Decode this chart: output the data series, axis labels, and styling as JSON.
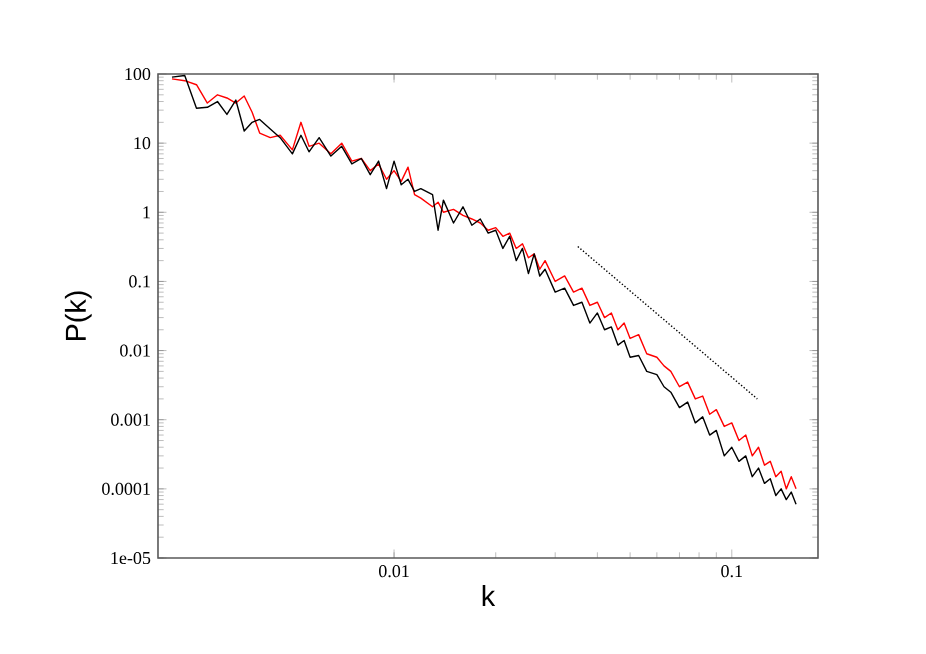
{
  "chart_data": {
    "type": "line",
    "xlabel": "k",
    "ylabel": "P(k)",
    "log": "xy",
    "xlim": [
      0.002,
      0.18
    ],
    "ylim": [
      1e-05,
      100
    ],
    "xticks": [
      0.01,
      0.1
    ],
    "yticks": [
      {
        "value": 1e-05,
        "label": "1e-05"
      },
      0.0001,
      0.001,
      0.01,
      0.1,
      1,
      10,
      100
    ],
    "x": [
      0.0022,
      0.0024,
      0.0026,
      0.0028,
      0.003,
      0.0032,
      0.0034,
      0.0036,
      0.0038,
      0.004,
      0.0043,
      0.0046,
      0.005,
      0.0053,
      0.0056,
      0.006,
      0.0065,
      0.007,
      0.0075,
      0.008,
      0.0085,
      0.009,
      0.0095,
      0.01,
      0.0105,
      0.011,
      0.0115,
      0.012,
      0.013,
      0.0135,
      0.014,
      0.015,
      0.016,
      0.017,
      0.018,
      0.019,
      0.02,
      0.021,
      0.022,
      0.023,
      0.024,
      0.025,
      0.026,
      0.027,
      0.028,
      0.03,
      0.032,
      0.034,
      0.036,
      0.038,
      0.04,
      0.042,
      0.044,
      0.046,
      0.048,
      0.05,
      0.053,
      0.056,
      0.06,
      0.063,
      0.066,
      0.07,
      0.074,
      0.078,
      0.082,
      0.086,
      0.09,
      0.095,
      0.1,
      0.105,
      0.11,
      0.115,
      0.12,
      0.125,
      0.13,
      0.135,
      0.14,
      0.145,
      0.15,
      0.155
    ],
    "series": [
      {
        "color": "#ff0000",
        "values": [
          85,
          80,
          70,
          38,
          50,
          45,
          38,
          48,
          28,
          14,
          12,
          13,
          8,
          20,
          9,
          10,
          7,
          10,
          5.5,
          6,
          4,
          5,
          3,
          4,
          2.8,
          4.5,
          1.8,
          1.6,
          1.2,
          1.4,
          1,
          1.1,
          0.9,
          0.8,
          0.7,
          0.55,
          0.6,
          0.45,
          0.5,
          0.3,
          0.35,
          0.22,
          0.25,
          0.15,
          0.2,
          0.1,
          0.12,
          0.07,
          0.08,
          0.045,
          0.05,
          0.03,
          0.035,
          0.02,
          0.025,
          0.015,
          0.017,
          0.009,
          0.008,
          0.006,
          0.005,
          0.003,
          0.0035,
          0.002,
          0.0022,
          0.0012,
          0.0014,
          0.0008,
          0.0009,
          0.0005,
          0.0006,
          0.0003,
          0.0004,
          0.00022,
          0.00025,
          0.00015,
          0.00018,
          0.0001,
          0.00015,
          0.0001
        ]
      },
      {
        "color": "#000000",
        "values": [
          90,
          95,
          32,
          33,
          40,
          26,
          42,
          15,
          20,
          22,
          16,
          12,
          7,
          13,
          7.5,
          12,
          6.5,
          9,
          5,
          6,
          3.5,
          5.5,
          2.2,
          5.5,
          2.5,
          3,
          2,
          2.2,
          1.8,
          0.55,
          1.5,
          0.7,
          1.2,
          0.65,
          0.8,
          0.5,
          0.55,
          0.3,
          0.45,
          0.2,
          0.3,
          0.13,
          0.25,
          0.12,
          0.15,
          0.07,
          0.08,
          0.045,
          0.05,
          0.025,
          0.035,
          0.02,
          0.022,
          0.012,
          0.014,
          0.008,
          0.0085,
          0.005,
          0.0045,
          0.003,
          0.0025,
          0.0015,
          0.0018,
          0.0009,
          0.0011,
          0.0006,
          0.0007,
          0.0003,
          0.0004,
          0.00025,
          0.0003,
          0.00015,
          0.0002,
          0.00012,
          0.00014,
          8e-05,
          0.0001,
          7e-05,
          9e-05,
          6e-05
        ]
      },
      {
        "type": "line",
        "line_style": "dotted",
        "color": "#000000",
        "x": [
          0.035,
          0.119
        ],
        "values": [
          0.32,
          0.002
        ]
      }
    ]
  }
}
